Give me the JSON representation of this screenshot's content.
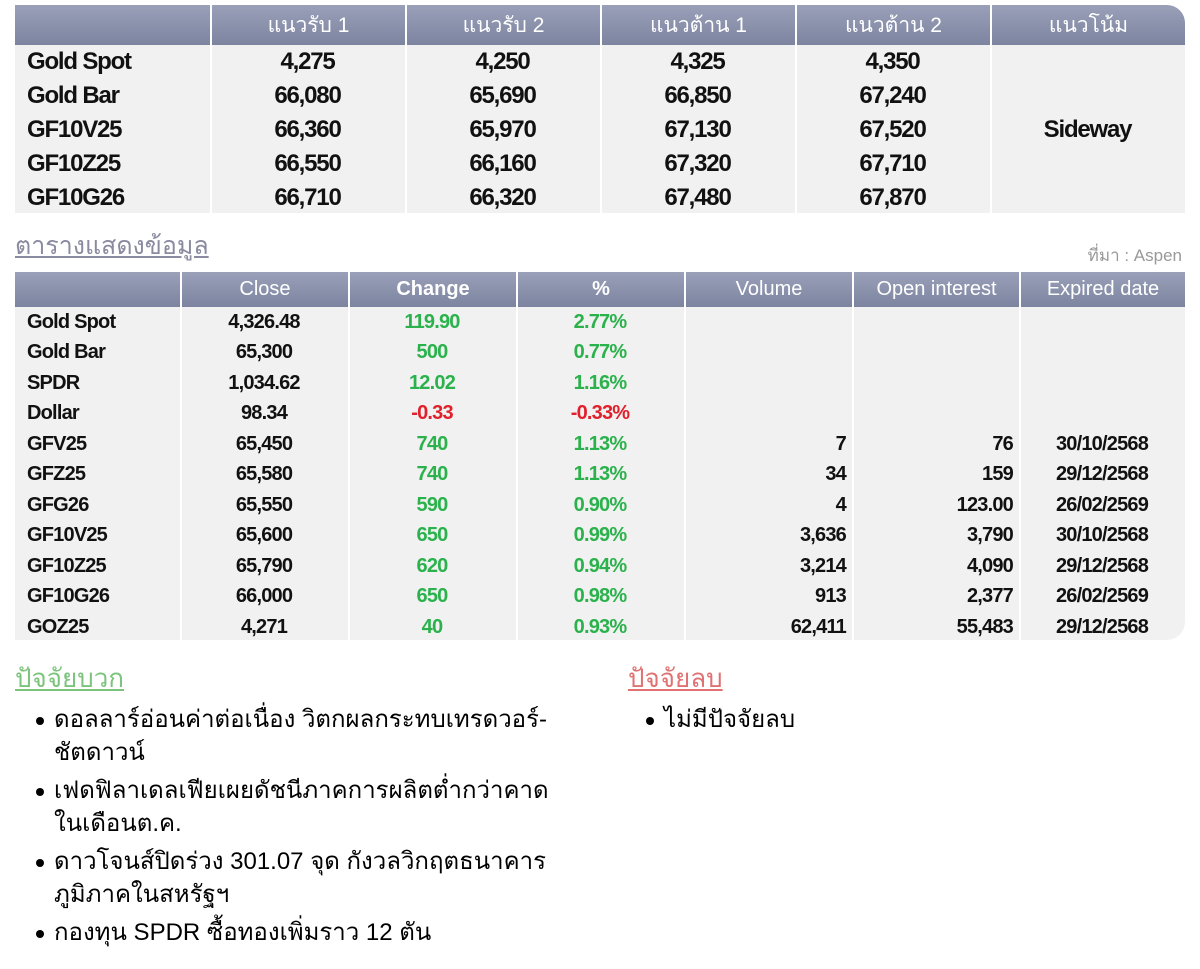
{
  "levels_table": {
    "headers": [
      "แนวรับ 1",
      "แนวรับ 2",
      "แนวต้าน 1",
      "แนวต้าน 2",
      "แนวโน้ม"
    ],
    "rows": [
      [
        "Gold Spot",
        "4,275",
        "4,250",
        "4,325",
        "4,350"
      ],
      [
        "Gold Bar",
        "66,080",
        "65,690",
        "66,850",
        "67,240"
      ],
      [
        "GF10V25",
        "66,360",
        "65,970",
        "67,130",
        "67,520"
      ],
      [
        "GF10Z25",
        "66,550",
        "66,160",
        "67,320",
        "67,710"
      ],
      [
        "GF10G26",
        "66,710",
        "66,320",
        "67,480",
        "67,870"
      ]
    ],
    "trend": "Sideway"
  },
  "data_table": {
    "title": "ตารางแสดงข้อมูล",
    "source": "ที่มา : Aspen",
    "headers": [
      "Close",
      "Change",
      "%",
      "Volume",
      "Open interest",
      "Expired date"
    ],
    "rows": [
      [
        "Gold Spot",
        "4,326.48",
        "119.90",
        "2.77%",
        null,
        null,
        null
      ],
      [
        "Gold Bar",
        "65,300",
        "500",
        "0.77%",
        null,
        null,
        null
      ],
      [
        "SPDR",
        "1,034.62",
        "12.02",
        "1.16%",
        null,
        null,
        null
      ],
      [
        "Dollar",
        "98.34",
        "-0.33",
        "-0.33%",
        null,
        null,
        null
      ],
      [
        "GFV25",
        "65,450",
        "740",
        "1.13%",
        "7",
        "76",
        "30/10/2568"
      ],
      [
        "GFZ25",
        "65,580",
        "740",
        "1.13%",
        "34",
        "159",
        "29/12/2568"
      ],
      [
        "GFG26",
        "65,550",
        "590",
        "0.90%",
        "4",
        "123.00",
        "26/02/2569"
      ],
      [
        "GF10V25",
        "65,600",
        "650",
        "0.99%",
        "3,636",
        "3,790",
        "30/10/2568"
      ],
      [
        "GF10Z25",
        "65,790",
        "620",
        "0.94%",
        "3,214",
        "4,090",
        "29/12/2568"
      ],
      [
        "GF10G26",
        "66,000",
        "650",
        "0.98%",
        "913",
        "2,377",
        "26/02/2569"
      ],
      [
        "GOZ25",
        "4,271",
        "40",
        "0.93%",
        "62,411",
        "55,483",
        "29/12/2568"
      ]
    ]
  },
  "positive_factors": {
    "title": "ปัจจัยบวก",
    "items": [
      "ดอลลาร์อ่อนค่าต่อเนื่อง วิตกผลกระทบเทรดวอร์-ชัตดาวน์",
      "เฟดฟิลาเดลเฟียเผยดัชนีภาคการผลิตต่ำกว่าคาดในเดือนต.ค.",
      "ดาวโจนส์ปิดร่วง 301.07 จุด กังวลวิกฤตธนาคารภูมิภาคในสหรัฐฯ",
      "กองทุน SPDR ซื้อทองเพิ่มราว 12 ตัน"
    ]
  },
  "negative_factors": {
    "title": "ปัจจัยลบ",
    "items": [
      "ไม่มีปัจจัยลบ"
    ]
  }
}
